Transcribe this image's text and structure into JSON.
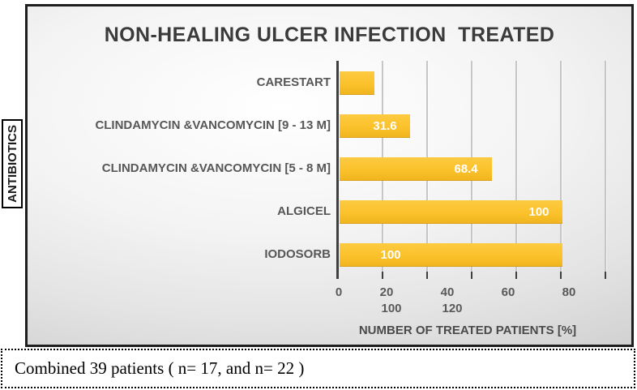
{
  "chart_data": {
    "type": "bar",
    "orientation": "horizontal",
    "title": "NON-HEALING ULCER INFECTION  TREATED",
    "categories": [
      "CARESTART",
      "CLINDAMYCIN &VANCOMYCIN [9 - 13 M]",
      "CLINDAMYCIN &VANCOMYCIN [5 - 8 M]",
      "ALGICEL",
      "IODOSORB"
    ],
    "values": [
      15.8,
      31.6,
      68.4,
      100,
      100
    ],
    "bar_labels": [
      "",
      "31.6",
      "68.4",
      "100",
      "100"
    ],
    "xlabel": "NUMBER OF TREATED PATIENTS [%]",
    "ylabel": "ANTIBIOTICS",
    "xlim": [
      0,
      120
    ],
    "xtick_step": 20,
    "xticks_row1": [
      "0",
      "20",
      "40",
      "60",
      "80"
    ],
    "xticks_row2": [
      "100",
      "120"
    ],
    "grid": true,
    "legend": "none",
    "colors": {
      "bar": "#FBC22C",
      "bar_label": "#FFFFFF",
      "title": "#3B3B3B",
      "axis_text": "#595959",
      "gridline": "#C6C6C6",
      "axis_line": "#3F3F3F",
      "chart_border": "#1E1E1E"
    }
  },
  "caption": {
    "text": "Combined 39 patients ( n= 17, and n= 22 )"
  }
}
